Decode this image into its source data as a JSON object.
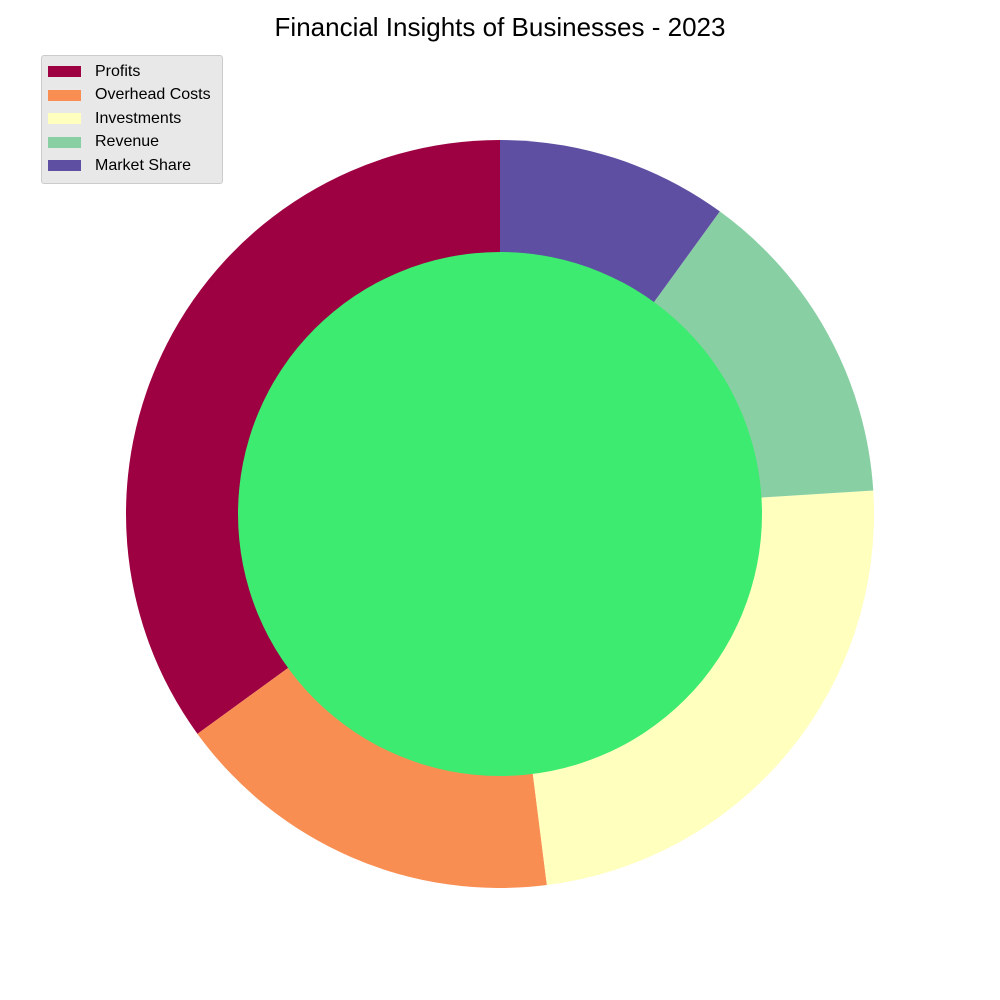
{
  "chart_data": {
    "type": "pie",
    "title": "Financial Insights of Businesses - 2023",
    "categories": [
      "Profits",
      "Overhead Costs",
      "Investments",
      "Revenue",
      "Market Share"
    ],
    "values": [
      35,
      17,
      24,
      14,
      10
    ],
    "colors": [
      "#9e0142",
      "#f98e52",
      "#ffffbe",
      "#88cfa4",
      "#5e4fa2"
    ],
    "center_color": "#3deb70",
    "donut": true,
    "start_angle_deg": 90,
    "direction": "counterclockwise",
    "legend": {
      "placement": "top-left"
    }
  }
}
